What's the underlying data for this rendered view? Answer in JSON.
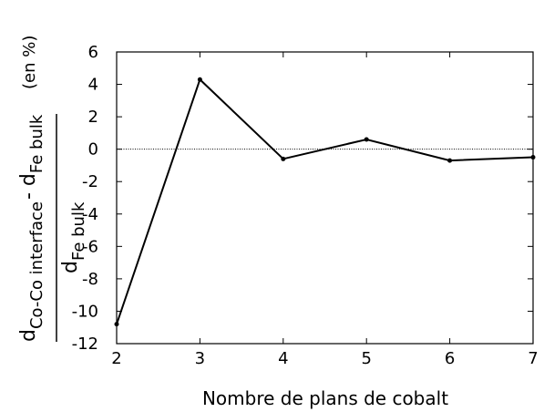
{
  "chart_data": {
    "type": "line",
    "xlabel": "Nombre de plans de cobalt",
    "ylabel": {
      "numerator": [
        {
          "text": "d",
          "sub": "Co-Co interface"
        },
        {
          "text": "- d",
          "sub": "Fe bulk"
        }
      ],
      "denominator": {
        "text": "d",
        "sub": "Fe bulk"
      },
      "unit": "(en %)"
    },
    "x": [
      2,
      3,
      4,
      5,
      6,
      7
    ],
    "series": [
      {
        "color": "#000000",
        "values": [
          -10.8,
          4.3,
          -0.6,
          0.6,
          -0.7,
          -0.5
        ]
      }
    ],
    "xlim": [
      2,
      7
    ],
    "xticks": [
      2,
      3,
      4,
      5,
      6,
      7
    ],
    "ylim": [
      -12,
      6
    ],
    "yticks": [
      -12,
      -10,
      -8,
      -6,
      -4,
      -2,
      0,
      2,
      4,
      6
    ],
    "reference_line": 0,
    "grid": false
  }
}
